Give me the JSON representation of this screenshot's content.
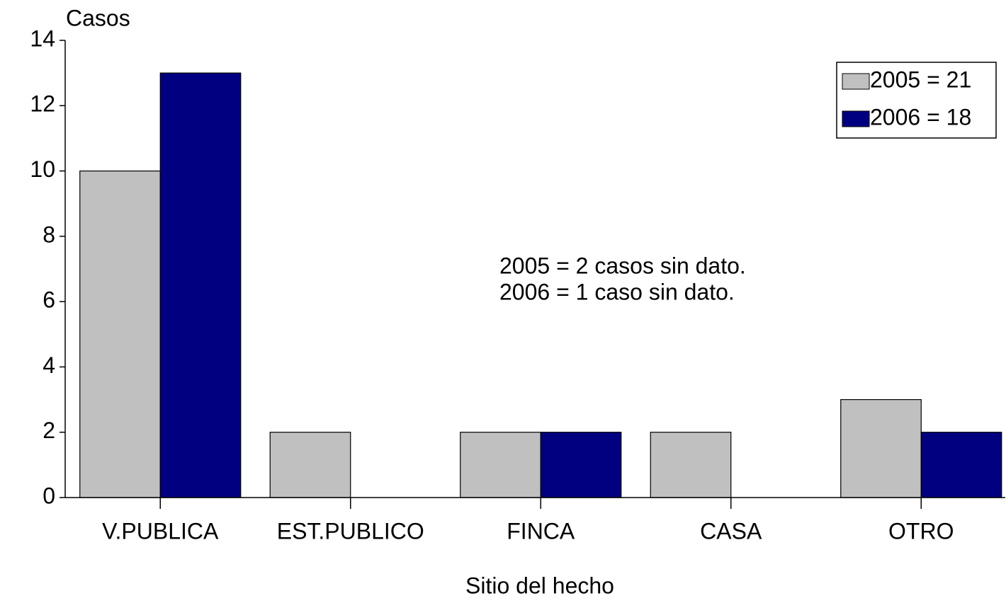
{
  "chart_data": {
    "type": "bar",
    "ylabel": "Casos",
    "xlabel": "Sitio del hecho",
    "categories": [
      "V.PUBLICA",
      "EST.PUBLICO",
      "FINCA",
      "CASA",
      "OTRO"
    ],
    "series": [
      {
        "name": "2005 = 21",
        "color": "#c0c0c0",
        "values": [
          10,
          2,
          2,
          2,
          3
        ]
      },
      {
        "name": "2006 = 18",
        "color": "#000080",
        "values": [
          13,
          0,
          2,
          0,
          2
        ]
      }
    ],
    "ylim": [
      0,
      14
    ],
    "yticks": [
      0,
      2,
      4,
      6,
      8,
      10,
      12,
      14
    ],
    "legend": "upper right",
    "annotations": [
      "2005 = 2 casos sin dato.",
      "2006 = 1 caso sin dato."
    ],
    "annotation_color": "#0000ff"
  }
}
